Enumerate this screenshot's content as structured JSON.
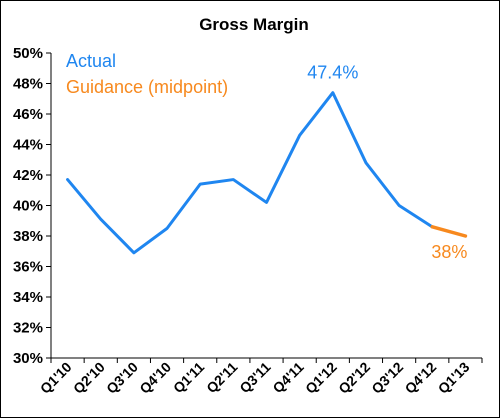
{
  "chart_data": {
    "type": "line",
    "title": "Gross Margin",
    "categories": [
      "Q1'10",
      "Q2'10",
      "Q3'10",
      "Q4'10",
      "Q1'11",
      "Q2'11",
      "Q3'11",
      "Q4'11",
      "Q1'12",
      "Q2'12",
      "Q3'12",
      "Q4'12",
      "Q1'13"
    ],
    "y_ticks": [
      "30%",
      "32%",
      "34%",
      "36%",
      "38%",
      "40%",
      "42%",
      "44%",
      "46%",
      "48%",
      "50%"
    ],
    "ylim": [
      30,
      50
    ],
    "grid": false,
    "legend_position": "top-left",
    "series": [
      {
        "name": "Actual",
        "color": "#1f86f0",
        "values": [
          41.7,
          39.1,
          36.9,
          38.5,
          41.4,
          41.7,
          40.2,
          44.6,
          47.4,
          42.8,
          40.0,
          38.6,
          null
        ]
      },
      {
        "name": "Guidance (midpoint)",
        "color": "#f7891e",
        "values": [
          null,
          null,
          null,
          null,
          null,
          null,
          null,
          null,
          null,
          null,
          null,
          38.6,
          38.0
        ]
      }
    ],
    "annotations": [
      {
        "text": "47.4%",
        "category": "Q1'12",
        "value": 47.4,
        "color": "#1f86f0"
      },
      {
        "text": "38%",
        "category": "Q1'13",
        "value": 38.0,
        "color": "#f7891e"
      }
    ]
  }
}
